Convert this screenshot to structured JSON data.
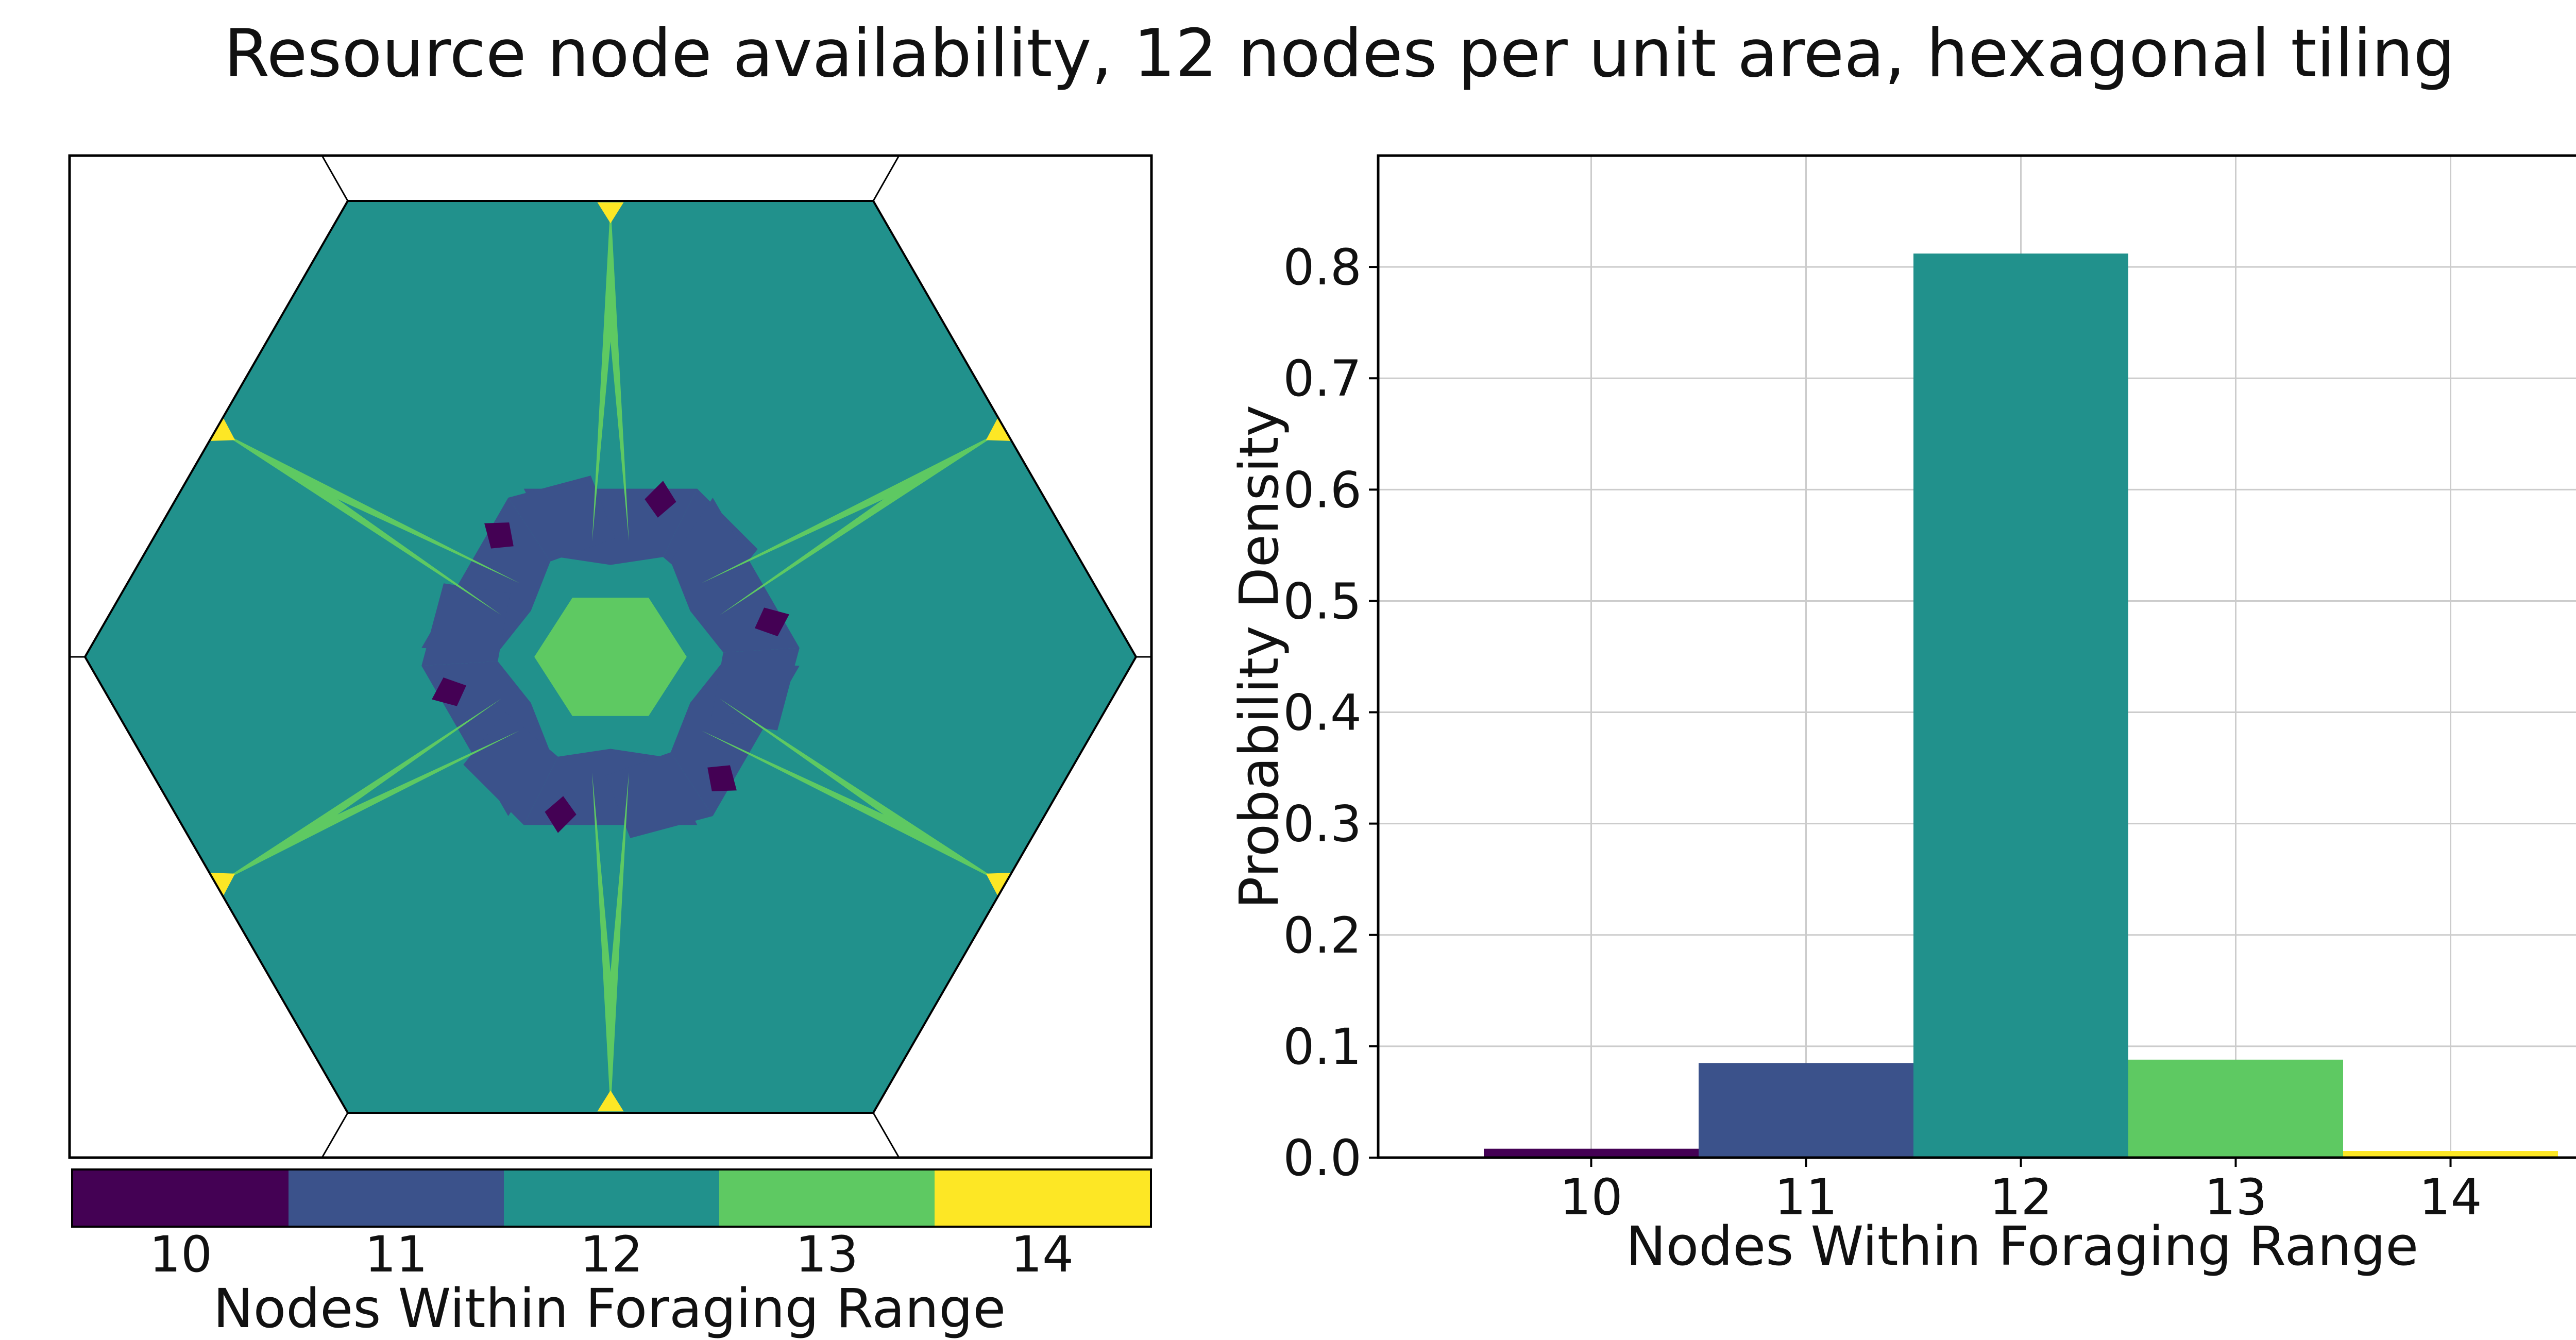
{
  "title": "Resource node availability, 12 nodes per unit area, hexagonal tiling",
  "colors": {
    "10": "#440154",
    "11": "#3b528b",
    "12": "#21918c",
    "13": "#5ec962",
    "14": "#fde725"
  },
  "colorbar": {
    "ticks": [
      "10",
      "11",
      "12",
      "13",
      "14"
    ],
    "label": "Nodes Within Foraging Range"
  },
  "chart_data": [
    {
      "type": "heatmap",
      "description_of_classes": "nodes within foraging range",
      "classes": [
        10,
        11,
        12,
        13,
        14
      ],
      "tiling": "hexagonal"
    },
    {
      "type": "bar",
      "categories": [
        "10",
        "11",
        "12",
        "13",
        "14"
      ],
      "values": [
        0.008,
        0.085,
        0.812,
        0.088,
        0.006
      ],
      "xlabel": "Nodes Within Foraging Range",
      "ylabel": "Probability Density",
      "ylim": [
        0,
        0.9
      ],
      "yticks": [
        "0.0",
        "0.1",
        "0.2",
        "0.3",
        "0.4",
        "0.5",
        "0.6",
        "0.7",
        "0.8"
      ],
      "grid": true
    }
  ]
}
